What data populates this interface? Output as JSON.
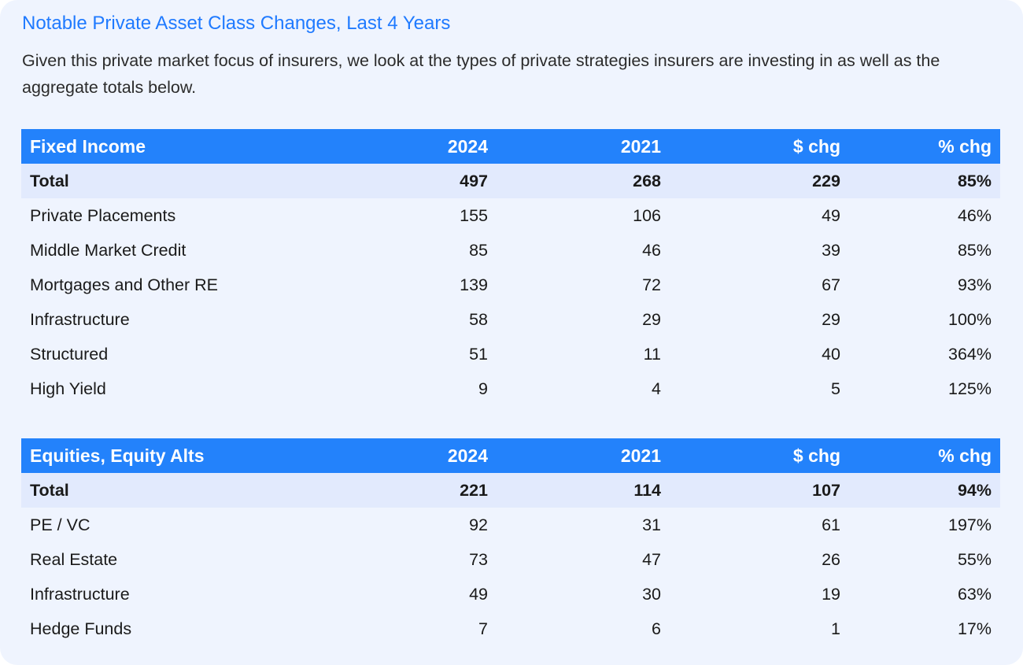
{
  "title": "Notable Private Asset Class Changes, Last 4 Years",
  "intro": "Given this private market focus of insurers, we look at the types of private strategies insurers are investing in as well as the aggregate totals below.",
  "tables": [
    {
      "header": [
        "Fixed Income",
        "2024",
        "2021",
        "$ chg",
        "% chg"
      ],
      "total": [
        "Total",
        "497",
        "268",
        "229",
        "85%"
      ],
      "rows": [
        [
          "Private Placements",
          "155",
          "106",
          "49",
          "46%"
        ],
        [
          "Middle Market Credit",
          "85",
          "46",
          "39",
          "85%"
        ],
        [
          "Mortgages and Other RE",
          "139",
          "72",
          "67",
          "93%"
        ],
        [
          "Infrastructure",
          "58",
          "29",
          "29",
          "100%"
        ],
        [
          "Structured",
          "51",
          "11",
          "40",
          "364%"
        ],
        [
          "High Yield",
          "9",
          "4",
          "5",
          "125%"
        ]
      ]
    },
    {
      "header": [
        "Equities, Equity Alts",
        "2024",
        "2021",
        "$ chg",
        "% chg"
      ],
      "total": [
        "Total",
        "221",
        "114",
        "107",
        "94%"
      ],
      "rows": [
        [
          "PE / VC",
          "92",
          "31",
          "61",
          "197%"
        ],
        [
          "Real Estate",
          "73",
          "47",
          "26",
          "55%"
        ],
        [
          "Infrastructure",
          "49",
          "30",
          "19",
          "63%"
        ],
        [
          "Hedge Funds",
          "7",
          "6",
          "1",
          "17%"
        ]
      ]
    }
  ],
  "colors": {
    "accent": "#1f7aff",
    "header_bg": "#2382fb",
    "total_bg": "#e2eafd",
    "card_bg": "#eff4fe"
  }
}
